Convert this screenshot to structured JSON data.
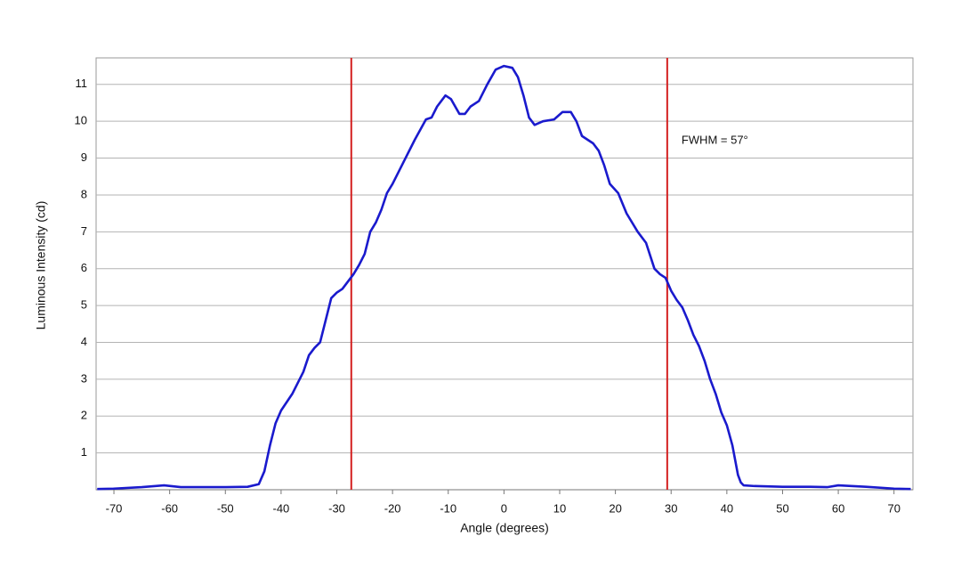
{
  "chart_data": {
    "type": "line",
    "x_label": "Angle (degrees)",
    "y_label": "Luminous Intensity (cd)",
    "annotation": "FWHM = 57°",
    "x": [
      -73,
      -70,
      -65,
      -61,
      -58,
      -55,
      -50,
      -46,
      -44,
      -43,
      -42,
      -41,
      -40,
      -38,
      -36,
      -35,
      -34,
      -33,
      -32,
      -31,
      -30,
      -29,
      -28,
      -27,
      -26,
      -25,
      -24,
      -23,
      -22,
      -21,
      -20,
      -18,
      -16,
      -14,
      -13,
      -12,
      -10.5,
      -9.5,
      -8,
      -7,
      -6,
      -4.5,
      -3,
      -1.5,
      0,
      1.5,
      2.5,
      3.5,
      4.5,
      5.5,
      7,
      9,
      10.5,
      12,
      13,
      14,
      16,
      17,
      18,
      19,
      20.5,
      22,
      24,
      25.5,
      27,
      28,
      29,
      30,
      31,
      32,
      33,
      34,
      35,
      36,
      37,
      38,
      39,
      40,
      41,
      42,
      42.5,
      43,
      45,
      50,
      55,
      58,
      60,
      65,
      70,
      73
    ],
    "series": [
      {
        "name": "Luminous Intensity",
        "color": "#1a1acd",
        "values": [
          0.02,
          0.03,
          0.07,
          0.12,
          0.07,
          0.07,
          0.07,
          0.08,
          0.15,
          0.5,
          1.2,
          1.8,
          2.15,
          2.6,
          3.2,
          3.65,
          3.85,
          4.0,
          4.6,
          5.2,
          5.35,
          5.45,
          5.65,
          5.85,
          6.1,
          6.4,
          7.0,
          7.25,
          7.6,
          8.05,
          8.3,
          8.9,
          9.5,
          10.05,
          10.1,
          10.4,
          10.7,
          10.6,
          10.2,
          10.2,
          10.4,
          10.55,
          11.0,
          11.4,
          11.5,
          11.45,
          11.2,
          10.7,
          10.1,
          9.9,
          10.0,
          10.05,
          10.25,
          10.25,
          10.0,
          9.6,
          9.4,
          9.2,
          8.8,
          8.3,
          8.05,
          7.5,
          7.0,
          6.7,
          6.0,
          5.85,
          5.75,
          5.4,
          5.15,
          4.95,
          4.6,
          4.2,
          3.9,
          3.5,
          3.0,
          2.6,
          2.1,
          1.75,
          1.2,
          0.4,
          0.2,
          0.12,
          0.1,
          0.08,
          0.08,
          0.07,
          0.12,
          0.08,
          0.03,
          0.02
        ]
      }
    ],
    "reference_lines": [
      {
        "x": -27.4,
        "color": "#d42020"
      },
      {
        "x": 29.3,
        "color": "#d42020"
      }
    ],
    "xlim": [
      -73.2,
      73.4
    ],
    "ylim": [
      0,
      11.72
    ],
    "xticks": [
      -70,
      -60,
      -50,
      -40,
      -30,
      -20,
      -10,
      0,
      10,
      20,
      30,
      40,
      50,
      60,
      70
    ],
    "yticks": [
      1,
      2,
      3,
      4,
      5,
      6,
      7,
      8,
      9,
      10,
      11
    ],
    "grid": true
  }
}
